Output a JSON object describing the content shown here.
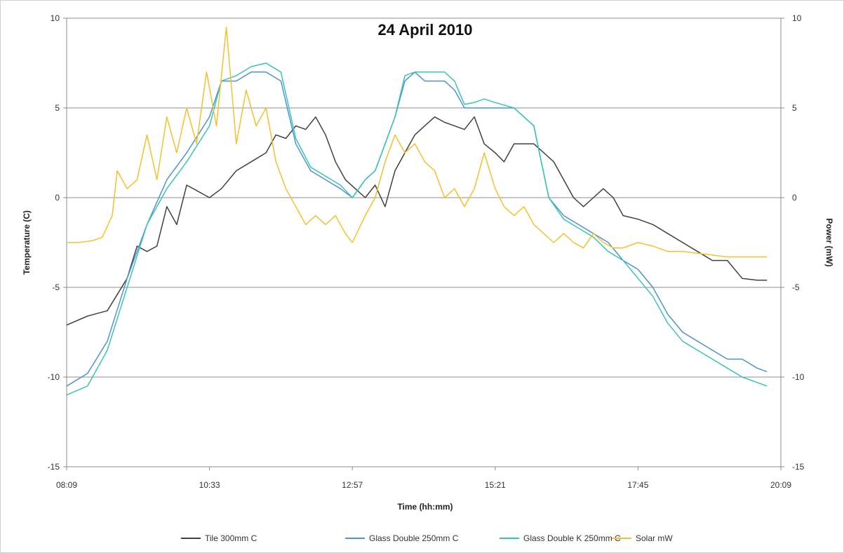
{
  "chart_data": {
    "type": "line",
    "title": "24 April 2010",
    "xlabel": "Time (hh:mm)",
    "ylabel": "Temperature (C)",
    "y2label": "Power (mW)",
    "x_ticks": [
      "08:09",
      "10:33",
      "12:57",
      "15:21",
      "17:45",
      "20:09"
    ],
    "x_range": [
      "08:09",
      "20:09"
    ],
    "ylim": [
      -15,
      10
    ],
    "y2lim": [
      -15,
      10
    ],
    "y_ticks": [
      10,
      5,
      0,
      -5,
      -10,
      -15
    ],
    "y2_ticks": [
      10,
      5,
      0,
      -5,
      -10,
      -15
    ],
    "grid": "horizontal",
    "legend_position": "bottom",
    "x_unit": "time (hh:mm)",
    "series": [
      {
        "name": "Tile 300mm C",
        "color": "#404040",
        "axis": "left",
        "x": [
          "08:09",
          "08:30",
          "08:50",
          "09:10",
          "09:20",
          "09:30",
          "09:40",
          "09:50",
          "10:00",
          "10:10",
          "10:20",
          "10:33",
          "10:45",
          "11:00",
          "11:15",
          "11:30",
          "11:40",
          "11:50",
          "12:00",
          "12:10",
          "12:20",
          "12:30",
          "12:40",
          "12:50",
          "13:00",
          "13:10",
          "13:20",
          "13:30",
          "13:40",
          "13:50",
          "14:00",
          "14:10",
          "14:20",
          "14:30",
          "14:40",
          "14:50",
          "15:00",
          "15:10",
          "15:21",
          "15:30",
          "15:40",
          "15:50",
          "16:00",
          "16:10",
          "16:20",
          "16:30",
          "16:40",
          "16:50",
          "17:00",
          "17:10",
          "17:20",
          "17:30",
          "17:45",
          "18:00",
          "18:15",
          "18:30",
          "18:45",
          "19:00",
          "19:15",
          "19:30",
          "19:45",
          "19:55"
        ],
        "y": [
          -7.1,
          -6.6,
          -6.3,
          -4.5,
          -2.7,
          -3,
          -2.7,
          -0.5,
          -1.5,
          0.7,
          0.4,
          0,
          0.5,
          1.5,
          2,
          2.5,
          3.5,
          3.3,
          4,
          3.8,
          4.5,
          3.5,
          2,
          1,
          0.5,
          0,
          0.7,
          -0.5,
          1.5,
          2.5,
          3.5,
          4,
          4.5,
          4.2,
          4,
          3.8,
          4.5,
          3,
          2.5,
          2,
          3,
          3,
          3,
          2.5,
          2,
          1,
          0,
          -0.5,
          0,
          0.5,
          0,
          -1,
          -1.2,
          -1.5,
          -2,
          -2.5,
          -3,
          -3.5,
          -3.5,
          -4.5,
          -4.6,
          -4.6
        ]
      },
      {
        "name": "Glass Double 250mm C",
        "color": "#4f93d6",
        "axis": "left",
        "x": [
          "08:09",
          "08:30",
          "08:50",
          "09:10",
          "09:30",
          "09:50",
          "10:10",
          "10:33",
          "10:45",
          "11:00",
          "11:15",
          "11:30",
          "11:45",
          "12:00",
          "12:15",
          "12:30",
          "12:45",
          "12:57",
          "13:10",
          "13:20",
          "13:30",
          "13:40",
          "13:50",
          "14:00",
          "14:10",
          "14:20",
          "14:30",
          "14:40",
          "14:50",
          "15:00",
          "15:10",
          "15:21",
          "15:40",
          "16:00",
          "16:15",
          "16:30",
          "16:45",
          "17:00",
          "17:15",
          "17:30",
          "17:45",
          "18:00",
          "18:15",
          "18:30",
          "18:45",
          "19:00",
          "19:15",
          "19:30",
          "19:45",
          "19:55"
        ],
        "y": [
          -10.5,
          -9.8,
          -8,
          -4.5,
          -1.5,
          1,
          2.5,
          4.5,
          6.5,
          6.5,
          7,
          7,
          6.5,
          3,
          1.5,
          1,
          0.5,
          0,
          1,
          1.5,
          3,
          4.5,
          6.5,
          7,
          6.5,
          6.5,
          6.5,
          6,
          5,
          5,
          5,
          5,
          5,
          4,
          0,
          -1,
          -1.5,
          -2,
          -2.5,
          -3.5,
          -4,
          -5,
          -6.5,
          -7.5,
          -8,
          -8.5,
          -9,
          -9,
          -9.5,
          -9.7
        ]
      },
      {
        "name": "Glass Double K 250mm C",
        "color": "#3cc4b4",
        "axis": "left",
        "x": [
          "08:09",
          "08:30",
          "08:50",
          "09:10",
          "09:30",
          "09:50",
          "10:10",
          "10:33",
          "10:45",
          "11:00",
          "11:15",
          "11:30",
          "11:45",
          "12:00",
          "12:15",
          "12:30",
          "12:45",
          "12:57",
          "13:10",
          "13:20",
          "13:30",
          "13:40",
          "13:50",
          "14:00",
          "14:10",
          "14:20",
          "14:30",
          "14:40",
          "14:50",
          "15:00",
          "15:10",
          "15:21",
          "15:40",
          "16:00",
          "16:15",
          "16:30",
          "16:45",
          "17:00",
          "17:15",
          "17:30",
          "17:45",
          "18:00",
          "18:15",
          "18:30",
          "18:45",
          "19:00",
          "19:15",
          "19:30",
          "19:45",
          "19:55"
        ],
        "y": [
          -11,
          -10.5,
          -8.5,
          -5,
          -1.5,
          0.5,
          2,
          4,
          6.5,
          6.8,
          7.3,
          7.5,
          7,
          3.3,
          1.7,
          1.2,
          0.7,
          0,
          1,
          1.5,
          3,
          4.5,
          6.8,
          7,
          7,
          7,
          7,
          6.5,
          5.2,
          5.3,
          5.5,
          5.3,
          5,
          4,
          0,
          -1.2,
          -1.7,
          -2.2,
          -3,
          -3.5,
          -4.5,
          -5.5,
          -7,
          -8,
          -8.5,
          -9,
          -9.5,
          -10,
          -10.3,
          -10.5
        ]
      },
      {
        "name": "Solar mW",
        "color": "#f5c02e",
        "axis": "right",
        "x": [
          "08:09",
          "08:20",
          "08:35",
          "08:45",
          "08:55",
          "09:00",
          "09:05",
          "09:10",
          "09:20",
          "09:30",
          "09:40",
          "09:50",
          "10:00",
          "10:10",
          "10:20",
          "10:30",
          "10:40",
          "10:50",
          "11:00",
          "11:10",
          "11:20",
          "11:30",
          "11:40",
          "11:50",
          "12:00",
          "12:10",
          "12:20",
          "12:30",
          "12:40",
          "12:50",
          "12:57",
          "13:10",
          "13:20",
          "13:30",
          "13:40",
          "13:50",
          "14:00",
          "14:10",
          "14:20",
          "14:30",
          "14:40",
          "14:50",
          "15:00",
          "15:10",
          "15:21",
          "15:30",
          "15:40",
          "15:50",
          "16:00",
          "16:10",
          "16:20",
          "16:30",
          "16:40",
          "16:50",
          "17:00",
          "17:10",
          "17:20",
          "17:30",
          "17:45",
          "18:00",
          "18:15",
          "18:30",
          "18:45",
          "19:00",
          "19:15",
          "19:30",
          "19:45",
          "19:55"
        ],
        "y": [
          -2.5,
          -2.5,
          -2.4,
          -2.2,
          -1,
          1.5,
          1,
          0.5,
          1,
          3.5,
          1,
          4.5,
          2.5,
          5,
          3,
          7,
          4,
          9.5,
          3,
          6,
          4,
          5,
          2,
          0.5,
          -0.5,
          -1.5,
          -1,
          -1.5,
          -1,
          -2,
          -2.5,
          -1,
          0,
          2,
          3.5,
          2.5,
          3,
          2,
          1.5,
          0,
          0.5,
          -0.5,
          0.5,
          2.5,
          0.5,
          -0.5,
          -1,
          -0.5,
          -1.5,
          -2,
          -2.5,
          -2,
          -2.5,
          -2.8,
          -2,
          -2.5,
          -2.8,
          -2.8,
          -2.5,
          -2.7,
          -3,
          -3,
          -3.1,
          -3.2,
          -3.3,
          -3.3,
          -3.3,
          -3.3
        ]
      }
    ]
  }
}
